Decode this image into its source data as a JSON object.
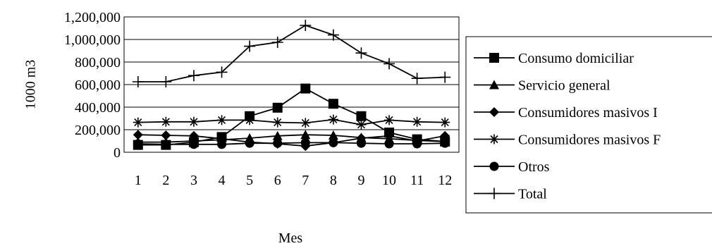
{
  "chart_data": {
    "type": "line",
    "title": "",
    "xlabel": "Mes",
    "ylabel": "1000 m3",
    "categories": [
      "1",
      "2",
      "3",
      "4",
      "5",
      "6",
      "7",
      "8",
      "9",
      "10",
      "11",
      "12"
    ],
    "ylim": [
      0,
      1200000
    ],
    "yticks": [
      0,
      200000,
      400000,
      600000,
      800000,
      1000000,
      1200000
    ],
    "ytick_labels": [
      "0",
      "200,000",
      "400,000",
      "600,000",
      "800,000",
      "1,000,000",
      "1,200,000"
    ],
    "grid": true,
    "legend_position": "right",
    "series": [
      {
        "name": "Consumo domiciliar",
        "marker": "square",
        "values": [
          65000,
          65000,
          90000,
          135000,
          320000,
          395000,
          565000,
          430000,
          320000,
          175000,
          115000,
          95000
        ]
      },
      {
        "name": "Servicio general",
        "marker": "triangle",
        "values": [
          90000,
          90000,
          100000,
          110000,
          125000,
          145000,
          155000,
          150000,
          130000,
          120000,
          105000,
          95000
        ]
      },
      {
        "name": "Consumidores masivos I",
        "marker": "diamond",
        "values": [
          155000,
          150000,
          145000,
          120000,
          90000,
          75000,
          55000,
          85000,
          125000,
          145000,
          100000,
          145000
        ]
      },
      {
        "name": "Consumidores masivos F",
        "marker": "asterisk",
        "values": [
          265000,
          270000,
          270000,
          285000,
          285000,
          265000,
          260000,
          290000,
          245000,
          285000,
          270000,
          265000
        ]
      },
      {
        "name": "Otros",
        "marker": "circle",
        "values": [
          75000,
          70000,
          70000,
          70000,
          80000,
          80000,
          85000,
          85000,
          80000,
          75000,
          75000,
          80000
        ]
      },
      {
        "name": "Total",
        "marker": "plus",
        "values": [
          625000,
          625000,
          680000,
          710000,
          940000,
          975000,
          1125000,
          1040000,
          880000,
          785000,
          655000,
          665000
        ]
      }
    ]
  }
}
